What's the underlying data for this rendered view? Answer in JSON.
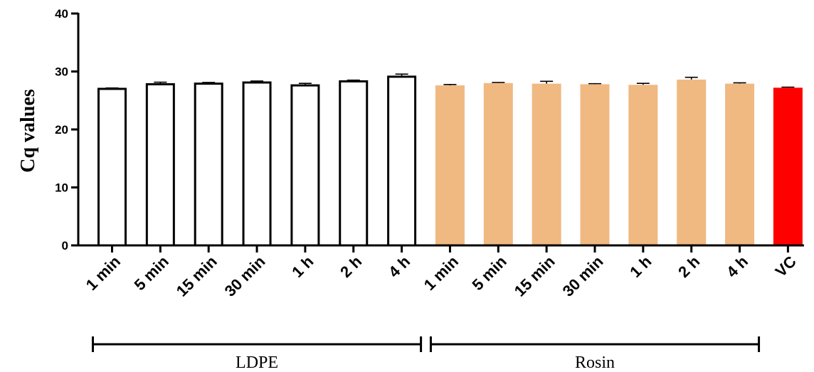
{
  "chart_data": {
    "type": "bar",
    "ylabel": "Cq values",
    "ylim": [
      0,
      40
    ],
    "yticks": [
      "0",
      "10",
      "20",
      "30",
      "40"
    ],
    "grid": false,
    "categories": [
      "1 min",
      "5 min",
      "15 min",
      "30 min",
      "1 h",
      "2 h",
      "4 h",
      "1 min",
      "5 min",
      "15 min",
      "30 min",
      "1 h",
      "2 h",
      "4 h",
      "VC"
    ],
    "values": [
      27.0,
      27.8,
      27.9,
      28.1,
      27.6,
      28.3,
      29.1,
      27.6,
      28.0,
      27.9,
      27.8,
      27.7,
      28.6,
      27.9,
      27.2
    ],
    "errors": [
      0.15,
      0.35,
      0.2,
      0.25,
      0.35,
      0.2,
      0.45,
      0.15,
      0.1,
      0.4,
      0.1,
      0.25,
      0.4,
      0.15,
      0.1
    ],
    "groups": [
      {
        "label": "LDPE",
        "start": 0,
        "end": 6
      },
      {
        "label": "Rosin",
        "start": 7,
        "end": 13
      }
    ],
    "colors": {
      "LDPE": "#ffffff",
      "Rosin": "#f0b982",
      "VC": "#ff0000",
      "outline": "#000000"
    }
  }
}
